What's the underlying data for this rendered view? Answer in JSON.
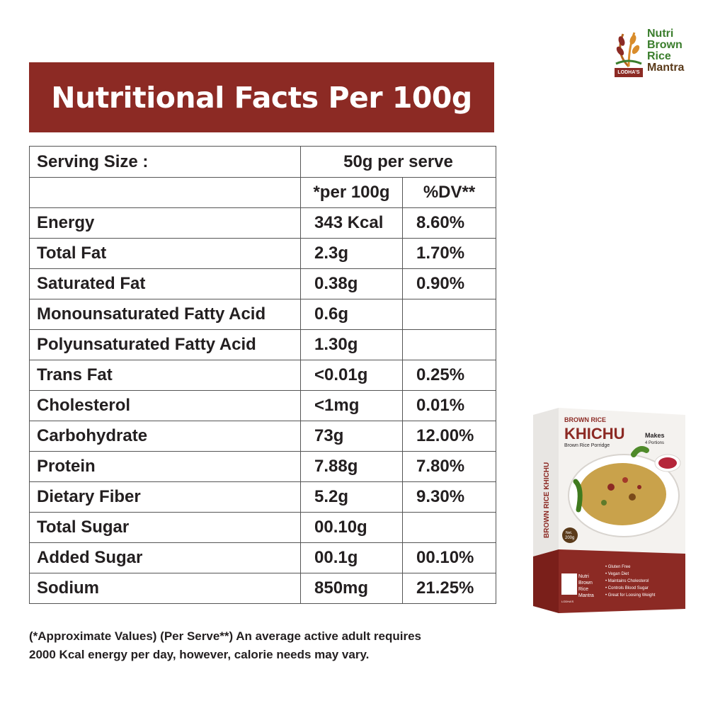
{
  "title": "Nutritional Facts Per 100g",
  "logo": {
    "line1": "Nutri",
    "line2": "Brown",
    "line3": "Rice",
    "line4": "Mantra",
    "badge": "LODHA'S"
  },
  "table": {
    "serving_label": "Serving Size :",
    "serving_value": "50g per serve",
    "col_per100": "*per 100g",
    "col_dv": "%DV**",
    "rows": [
      {
        "name": "Energy",
        "per100": "343 Kcal",
        "dv": "8.60%"
      },
      {
        "name": "Total Fat",
        "per100": "2.3g",
        "dv": "1.70%"
      },
      {
        "name": "Saturated Fat",
        "per100": "0.38g",
        "dv": "0.90%"
      },
      {
        "name": "Monounsaturated Fatty Acid",
        "per100": "0.6g",
        "dv": ""
      },
      {
        "name": "Polyunsaturated Fatty Acid",
        "per100": "1.30g",
        "dv": ""
      },
      {
        "name": "Trans Fat",
        "per100": "<0.01g",
        "dv": "0.25%"
      },
      {
        "name": "Cholesterol",
        "per100": "<1mg",
        "dv": "0.01%"
      },
      {
        "name": "Carbohydrate",
        "per100": "73g",
        "dv": "12.00%"
      },
      {
        "name": "Protein",
        "per100": "7.88g",
        "dv": "7.80%"
      },
      {
        "name": "Dietary Fiber",
        "per100": "5.2g",
        "dv": "9.30%"
      },
      {
        "name": "Total Sugar",
        "per100": "00.10g",
        "dv": ""
      },
      {
        "name": "Added Sugar",
        "per100": "00.1g",
        "dv": "00.10%"
      },
      {
        "name": "Sodium",
        "per100": "850mg",
        "dv": "21.25%"
      }
    ]
  },
  "footnote": {
    "line1": "(*Approximate Values)  (Per Serve**)  An average active adult requires",
    "line2": "2000 Kcal energy per day, however, calorie needs may vary."
  },
  "product": {
    "top_label": "BROWN RICE",
    "name": "KHICHU",
    "subtitle": "Brown Rice Porridge",
    "side_text": "BROWN RICE KHICHU",
    "makes": "Makes",
    "portions": "4 Portions",
    "weight": "200g",
    "net_label": "Net.",
    "brand": [
      "Nutri",
      "Brown",
      "Rice",
      "Mantra"
    ],
    "brand_badge": "LODHA'S",
    "features": [
      "• Gluten Free",
      "• Vegan Diet",
      "• Maintains Cholesterol",
      "• Controls Blood Sugar",
      "• Great for Loosing Weight"
    ]
  },
  "colors": {
    "banner": "#8c2a24",
    "text": "#231f20",
    "logo_green": "#3a7d2c"
  }
}
